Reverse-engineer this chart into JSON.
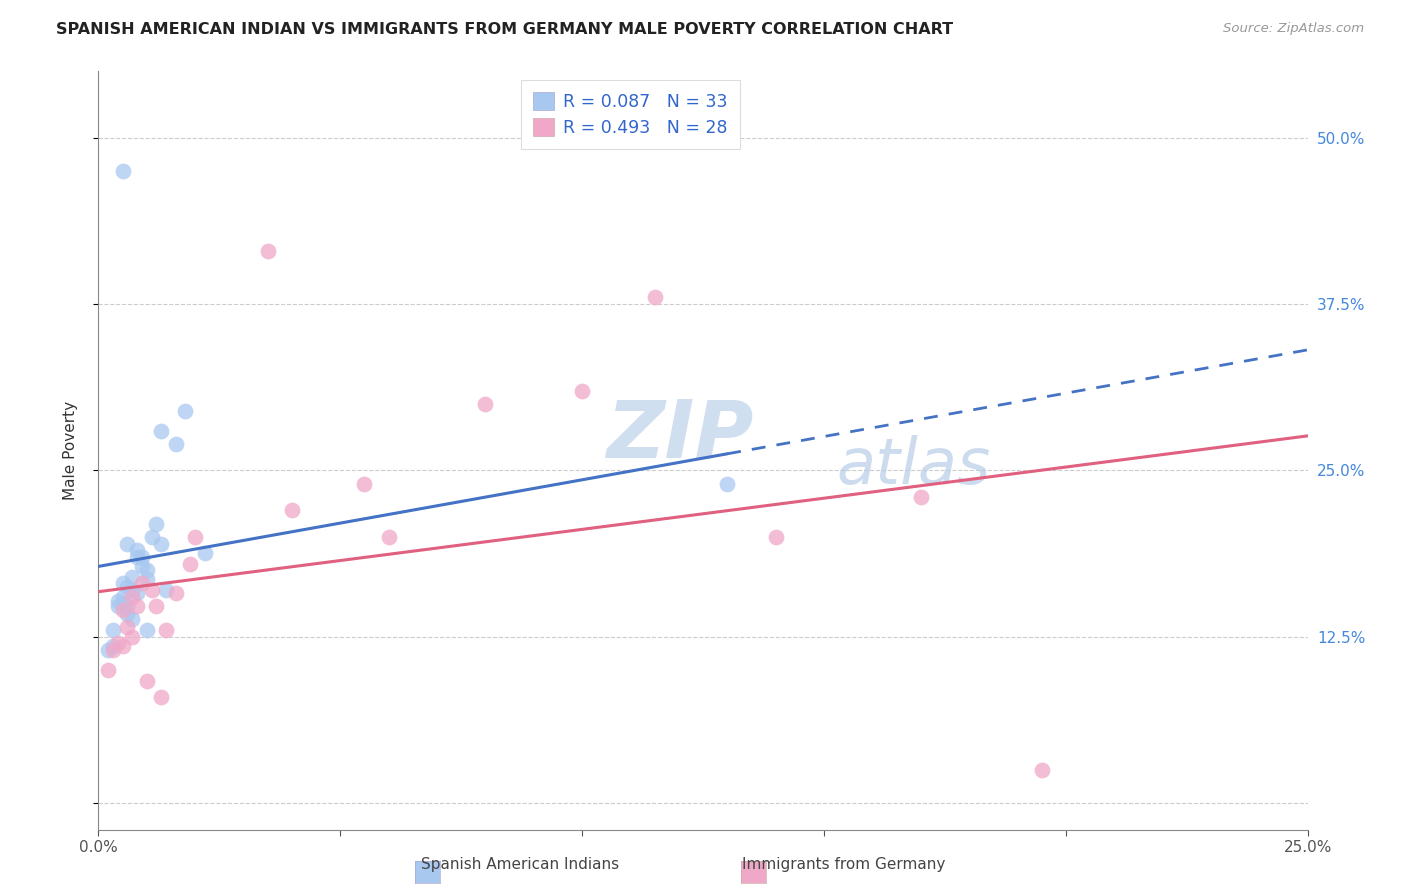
{
  "title": "SPANISH AMERICAN INDIAN VS IMMIGRANTS FROM GERMANY MALE POVERTY CORRELATION CHART",
  "source": "Source: ZipAtlas.com",
  "ylabel": "Male Poverty",
  "xlim": [
    0.0,
    0.25
  ],
  "ylim": [
    -0.02,
    0.55
  ],
  "ytick_positions": [
    0.0,
    0.125,
    0.25,
    0.375,
    0.5
  ],
  "ytick_labels": [
    "",
    "12.5%",
    "25.0%",
    "37.5%",
    "50.0%"
  ],
  "r_blue": 0.087,
  "n_blue": 33,
  "r_pink": 0.493,
  "n_pink": 28,
  "blue_scatter_color": "#a8c8f0",
  "pink_scatter_color": "#f0a8c8",
  "blue_line_color": "#4472c4",
  "pink_line_color": "#e06080",
  "legend_label_blue": "Spanish American Indians",
  "legend_label_pink": "Immigrants from Germany",
  "watermark_zip": "ZIP",
  "watermark_atlas": "atlas",
  "blue_x": [
    0.002,
    0.003,
    0.003,
    0.004,
    0.004,
    0.005,
    0.005,
    0.005,
    0.005,
    0.006,
    0.006,
    0.006,
    0.006,
    0.007,
    0.007,
    0.007,
    0.008,
    0.008,
    0.008,
    0.009,
    0.009,
    0.01,
    0.01,
    0.01,
    0.011,
    0.012,
    0.013,
    0.013,
    0.014,
    0.016,
    0.018,
    0.022,
    0.13
  ],
  "blue_y": [
    0.115,
    0.13,
    0.118,
    0.152,
    0.148,
    0.155,
    0.15,
    0.165,
    0.475,
    0.162,
    0.148,
    0.142,
    0.195,
    0.138,
    0.17,
    0.16,
    0.158,
    0.185,
    0.19,
    0.178,
    0.185,
    0.13,
    0.168,
    0.175,
    0.2,
    0.21,
    0.195,
    0.28,
    0.16,
    0.27,
    0.295,
    0.188,
    0.24
  ],
  "pink_x": [
    0.002,
    0.003,
    0.004,
    0.005,
    0.005,
    0.006,
    0.007,
    0.007,
    0.008,
    0.009,
    0.01,
    0.011,
    0.012,
    0.013,
    0.014,
    0.016,
    0.019,
    0.02,
    0.035,
    0.04,
    0.055,
    0.06,
    0.08,
    0.1,
    0.115,
    0.14,
    0.17,
    0.195
  ],
  "pink_y": [
    0.1,
    0.115,
    0.12,
    0.118,
    0.145,
    0.132,
    0.125,
    0.155,
    0.148,
    0.165,
    0.092,
    0.16,
    0.148,
    0.08,
    0.13,
    0.158,
    0.18,
    0.2,
    0.415,
    0.22,
    0.24,
    0.2,
    0.3,
    0.31,
    0.38,
    0.2,
    0.23,
    0.025
  ],
  "blue_line_x_solid_end": 0.13,
  "blue_line_x_dash_start": 0.13,
  "blue_line_x_dash_end": 0.25
}
